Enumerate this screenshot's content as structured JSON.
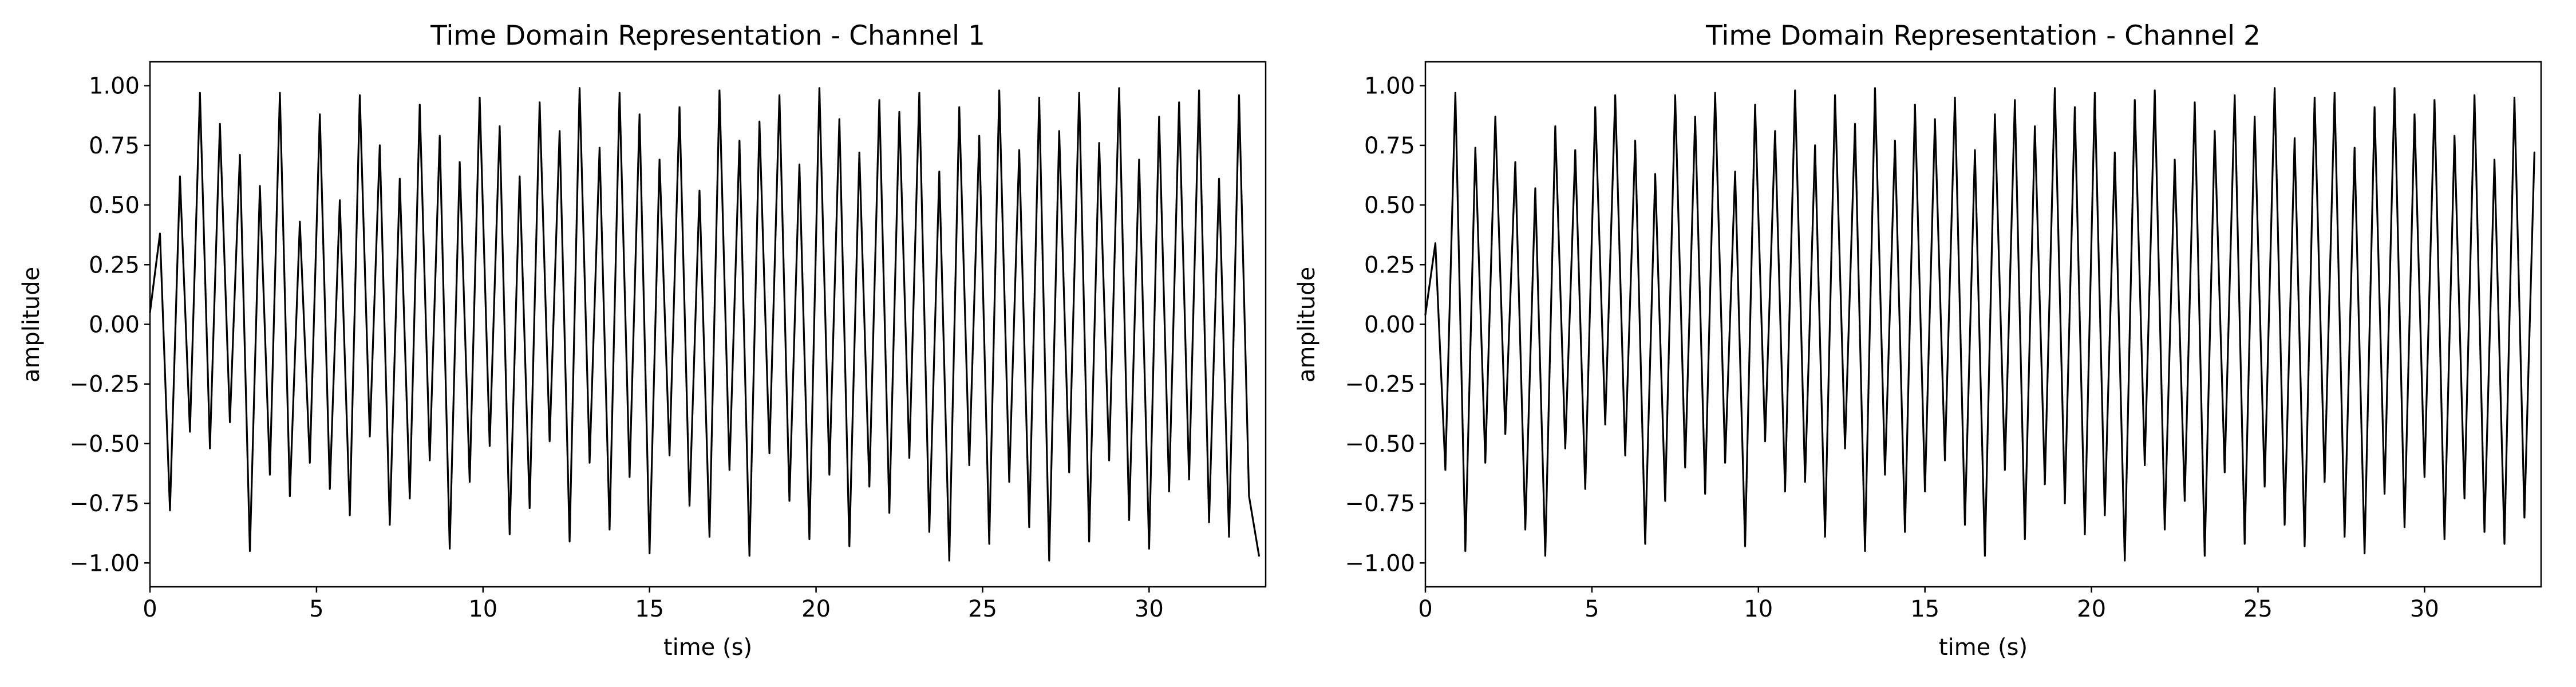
{
  "chart_data": [
    {
      "type": "line",
      "title": "Time Domain Representation - Channel 1",
      "xlabel": "time (s)",
      "ylabel": "amplitude",
      "xlim": [
        0,
        33.5
      ],
      "ylim": [
        -1.1,
        1.1
      ],
      "grid": false,
      "x_ticks": [
        {
          "value": 0,
          "label": "0"
        },
        {
          "value": 5,
          "label": "5"
        },
        {
          "value": 10,
          "label": "10"
        },
        {
          "value": 15,
          "label": "15"
        },
        {
          "value": 20,
          "label": "20"
        },
        {
          "value": 25,
          "label": "25"
        },
        {
          "value": 30,
          "label": "30"
        }
      ],
      "y_ticks": [
        {
          "value": 1.0,
          "label": "1.00"
        },
        {
          "value": 0.75,
          "label": "0.75"
        },
        {
          "value": 0.5,
          "label": "0.50"
        },
        {
          "value": 0.25,
          "label": "0.25"
        },
        {
          "value": 0.0,
          "label": "0.00"
        },
        {
          "value": -0.25,
          "label": "−0.25"
        },
        {
          "value": -0.5,
          "label": "−0.50"
        },
        {
          "value": -0.75,
          "label": "−0.75"
        },
        {
          "value": -1.0,
          "label": "−1.00"
        }
      ],
      "series": [
        {
          "color": "#000000",
          "x": [
            0.0,
            0.3,
            0.6,
            0.9,
            1.2,
            1.5,
            1.8,
            2.1,
            2.4,
            2.7,
            3.0,
            3.3,
            3.6,
            3.9,
            4.2,
            4.5,
            4.8,
            5.1,
            5.4,
            5.7,
            6.0,
            6.3,
            6.6,
            6.9,
            7.2,
            7.5,
            7.8,
            8.1,
            8.4,
            8.7,
            9.0,
            9.3,
            9.6,
            9.9,
            10.2,
            10.5,
            10.8,
            11.1,
            11.4,
            11.7,
            12.0,
            12.3,
            12.6,
            12.9,
            13.2,
            13.5,
            13.8,
            14.1,
            14.4,
            14.7,
            15.0,
            15.3,
            15.6,
            15.9,
            16.2,
            16.5,
            16.8,
            17.1,
            17.4,
            17.7,
            18.0,
            18.3,
            18.6,
            18.9,
            19.2,
            19.5,
            19.8,
            20.1,
            20.4,
            20.7,
            21.0,
            21.3,
            21.6,
            21.9,
            22.2,
            22.5,
            22.8,
            23.1,
            23.4,
            23.7,
            24.0,
            24.3,
            24.6,
            24.9,
            25.2,
            25.5,
            25.8,
            26.1,
            26.4,
            26.7,
            27.0,
            27.3,
            27.6,
            27.9,
            28.2,
            28.5,
            28.8,
            29.1,
            29.4,
            29.7,
            30.0,
            30.3,
            30.6,
            30.9,
            31.2,
            31.5,
            31.8,
            32.1,
            32.4,
            32.7,
            33.0,
            33.3
          ],
          "y": [
            0.05,
            0.38,
            -0.78,
            0.62,
            -0.45,
            0.97,
            -0.52,
            0.84,
            -0.41,
            0.71,
            -0.95,
            0.58,
            -0.63,
            0.97,
            -0.72,
            0.43,
            -0.58,
            0.88,
            -0.69,
            0.52,
            -0.8,
            0.96,
            -0.47,
            0.75,
            -0.84,
            0.61,
            -0.73,
            0.92,
            -0.57,
            0.79,
            -0.94,
            0.68,
            -0.66,
            0.95,
            -0.51,
            0.83,
            -0.88,
            0.62,
            -0.77,
            0.93,
            -0.49,
            0.81,
            -0.91,
            0.99,
            -0.58,
            0.74,
            -0.86,
            0.97,
            -0.64,
            0.88,
            -0.96,
            0.69,
            -0.55,
            0.91,
            -0.76,
            0.56,
            -0.89,
            0.98,
            -0.61,
            0.77,
            -0.97,
            0.85,
            -0.54,
            0.96,
            -0.74,
            0.67,
            -0.9,
            0.99,
            -0.63,
            0.86,
            -0.93,
            0.72,
            -0.68,
            0.94,
            -0.79,
            0.89,
            -0.56,
            0.97,
            -0.87,
            0.64,
            -0.99,
            0.91,
            -0.59,
            0.79,
            -0.92,
            0.98,
            -0.66,
            0.73,
            -0.85,
            0.95,
            -0.99,
            0.81,
            -0.62,
            0.97,
            -0.91,
            0.76,
            -0.57,
            0.99,
            -0.82,
            0.69,
            -0.94,
            0.87,
            -0.7,
            0.93,
            -0.65,
            0.98,
            -0.83,
            0.61,
            -0.89,
            0.96,
            -0.72,
            -0.97
          ]
        }
      ]
    },
    {
      "type": "line",
      "title": "Time Domain Representation - Channel 2",
      "xlabel": "time (s)",
      "ylabel": "amplitude",
      "xlim": [
        0,
        33.5
      ],
      "ylim": [
        -1.1,
        1.1
      ],
      "grid": false,
      "x_ticks": [
        {
          "value": 0,
          "label": "0"
        },
        {
          "value": 5,
          "label": "5"
        },
        {
          "value": 10,
          "label": "10"
        },
        {
          "value": 15,
          "label": "15"
        },
        {
          "value": 20,
          "label": "20"
        },
        {
          "value": 25,
          "label": "25"
        },
        {
          "value": 30,
          "label": "30"
        }
      ],
      "y_ticks": [
        {
          "value": 1.0,
          "label": "1.00"
        },
        {
          "value": 0.75,
          "label": "0.75"
        },
        {
          "value": 0.5,
          "label": "0.50"
        },
        {
          "value": 0.25,
          "label": "0.25"
        },
        {
          "value": 0.0,
          "label": "0.00"
        },
        {
          "value": -0.25,
          "label": "−0.25"
        },
        {
          "value": -0.5,
          "label": "−0.50"
        },
        {
          "value": -0.75,
          "label": "−0.75"
        },
        {
          "value": -1.0,
          "label": "−1.00"
        }
      ],
      "series": [
        {
          "color": "#000000",
          "x": [
            0.0,
            0.3,
            0.6,
            0.9,
            1.2,
            1.5,
            1.8,
            2.1,
            2.4,
            2.7,
            3.0,
            3.3,
            3.6,
            3.9,
            4.2,
            4.5,
            4.8,
            5.1,
            5.4,
            5.7,
            6.0,
            6.3,
            6.6,
            6.9,
            7.2,
            7.5,
            7.8,
            8.1,
            8.4,
            8.7,
            9.0,
            9.3,
            9.6,
            9.9,
            10.2,
            10.5,
            10.8,
            11.1,
            11.4,
            11.7,
            12.0,
            12.3,
            12.6,
            12.9,
            13.2,
            13.5,
            13.8,
            14.1,
            14.4,
            14.7,
            15.0,
            15.3,
            15.6,
            15.9,
            16.2,
            16.5,
            16.8,
            17.1,
            17.4,
            17.7,
            18.0,
            18.3,
            18.6,
            18.9,
            19.2,
            19.5,
            19.8,
            20.1,
            20.4,
            20.7,
            21.0,
            21.3,
            21.6,
            21.9,
            22.2,
            22.5,
            22.8,
            23.1,
            23.4,
            23.7,
            24.0,
            24.3,
            24.6,
            24.9,
            25.2,
            25.5,
            25.8,
            26.1,
            26.4,
            26.7,
            27.0,
            27.3,
            27.6,
            27.9,
            28.2,
            28.5,
            28.8,
            29.1,
            29.4,
            29.7,
            30.0,
            30.3,
            30.6,
            30.9,
            31.2,
            31.5,
            31.8,
            32.1,
            32.4,
            32.7,
            33.0,
            33.3
          ],
          "y": [
            0.04,
            0.34,
            -0.61,
            0.97,
            -0.95,
            0.74,
            -0.58,
            0.87,
            -0.46,
            0.68,
            -0.86,
            0.57,
            -0.97,
            0.83,
            -0.52,
            0.73,
            -0.69,
            0.91,
            -0.42,
            0.96,
            -0.55,
            0.77,
            -0.92,
            0.63,
            -0.74,
            0.96,
            -0.6,
            0.87,
            -0.71,
            0.97,
            -0.58,
            0.64,
            -0.93,
            0.92,
            -0.49,
            0.81,
            -0.7,
            0.98,
            -0.66,
            0.75,
            -0.89,
            0.96,
            -0.52,
            0.84,
            -0.95,
            0.99,
            -0.63,
            0.77,
            -0.87,
            0.92,
            -0.7,
            0.86,
            -0.57,
            0.95,
            -0.84,
            0.73,
            -0.97,
            0.88,
            -0.61,
            0.94,
            -0.9,
            0.83,
            -0.67,
            0.99,
            -0.75,
            0.91,
            -0.88,
            0.97,
            -0.8,
            0.72,
            -0.99,
            0.94,
            -0.59,
            0.98,
            -0.86,
            0.69,
            -0.74,
            0.93,
            -0.97,
            0.81,
            -0.62,
            0.96,
            -0.92,
            0.87,
            -0.68,
            0.99,
            -0.84,
            0.78,
            -0.93,
            0.95,
            -0.66,
            0.97,
            -0.89,
            0.74,
            -0.96,
            0.91,
            -0.71,
            0.99,
            -0.85,
            0.88,
            -0.64,
            0.94,
            -0.9,
            0.79,
            -0.73,
            0.96,
            -0.87,
            0.69,
            -0.92,
            0.95,
            -0.81,
            0.72
          ]
        }
      ]
    }
  ]
}
